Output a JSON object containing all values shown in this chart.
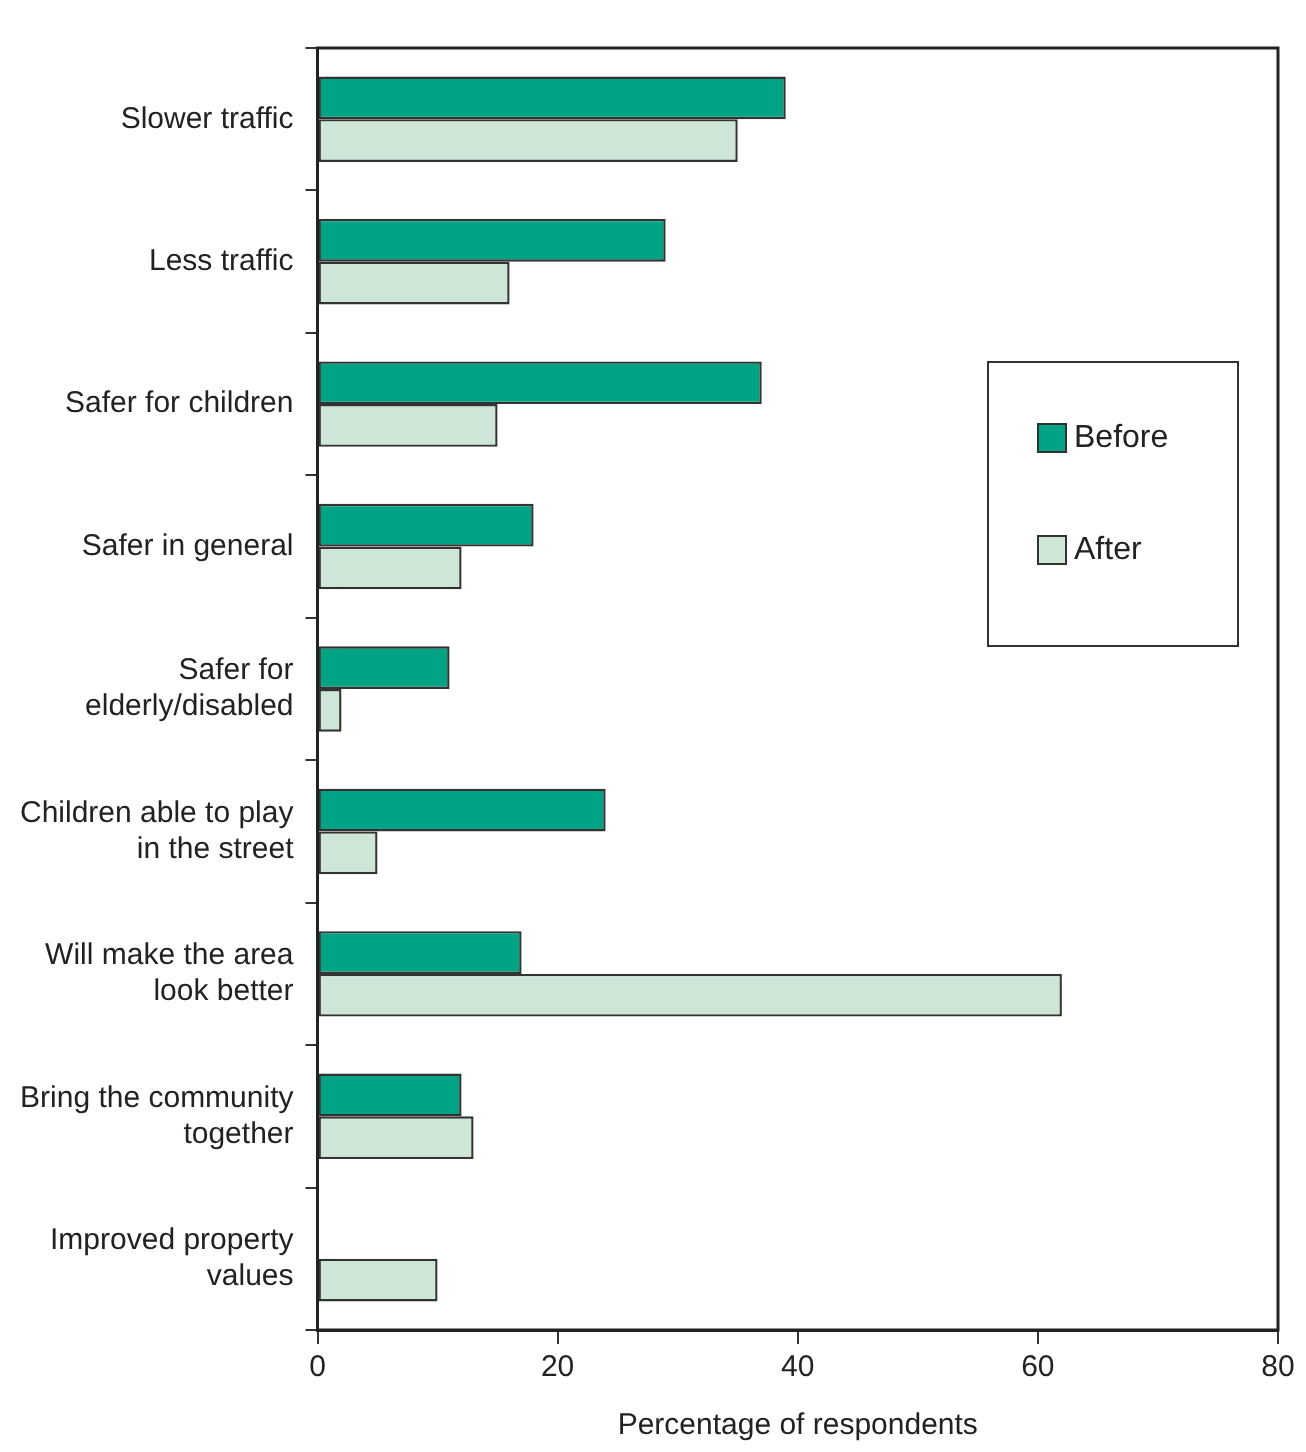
{
  "chart_data": {
    "type": "bar",
    "orientation": "horizontal",
    "xlabel": "Percentage of respondents",
    "categories": [
      "Slower traffic",
      "Less traffic",
      "Safer for children",
      "Safer in general",
      "Safer for elderly/disabled",
      "Children able to play in the street",
      "Will make the area look better",
      "Bring the community together",
      "Improved property values"
    ],
    "series": [
      {
        "name": "Before",
        "color": "#00a383",
        "values": [
          39,
          29,
          37,
          18,
          11,
          24,
          17,
          12,
          null
        ]
      },
      {
        "name": "After",
        "color": "#cde6d6",
        "values": [
          35,
          16,
          15,
          12,
          2,
          5,
          62,
          13,
          10
        ]
      }
    ],
    "xlim": [
      0,
      80
    ],
    "xticks": [
      0,
      20,
      40,
      60,
      80
    ],
    "grid": false,
    "legend": "right"
  }
}
